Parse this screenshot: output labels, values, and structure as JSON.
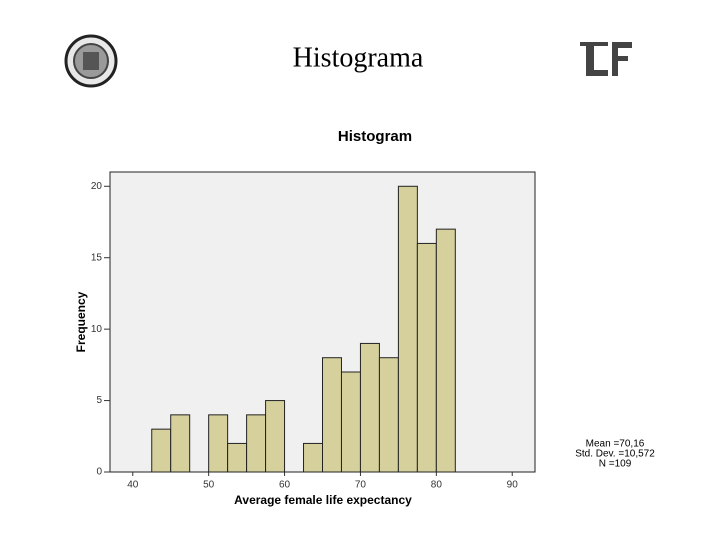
{
  "slide_title": "Histograma",
  "chart_data": {
    "type": "histogram",
    "title": "Histogram",
    "x_label": "Average female life expectancy",
    "y_label": "Frequency",
    "bins": [
      42.5,
      45,
      47.5,
      50,
      52.5,
      55,
      57.5,
      60,
      62.5,
      65,
      67.5,
      70,
      72.5,
      75,
      77.5,
      80,
      82.5
    ],
    "counts": [
      3,
      4,
      0,
      4,
      2,
      4,
      5,
      0,
      2,
      8,
      7,
      9,
      8,
      20,
      16,
      17
    ],
    "color": "#d6d19c",
    "xlim": [
      37,
      93
    ],
    "xticks": [
      40,
      50,
      60,
      70,
      80,
      90
    ],
    "ylim": [
      0,
      21
    ],
    "yticks": [
      0,
      5,
      10,
      15,
      20
    ],
    "annotations": [
      "Mean =70,16",
      "Std. Dev. =10,572",
      "N =109"
    ]
  }
}
